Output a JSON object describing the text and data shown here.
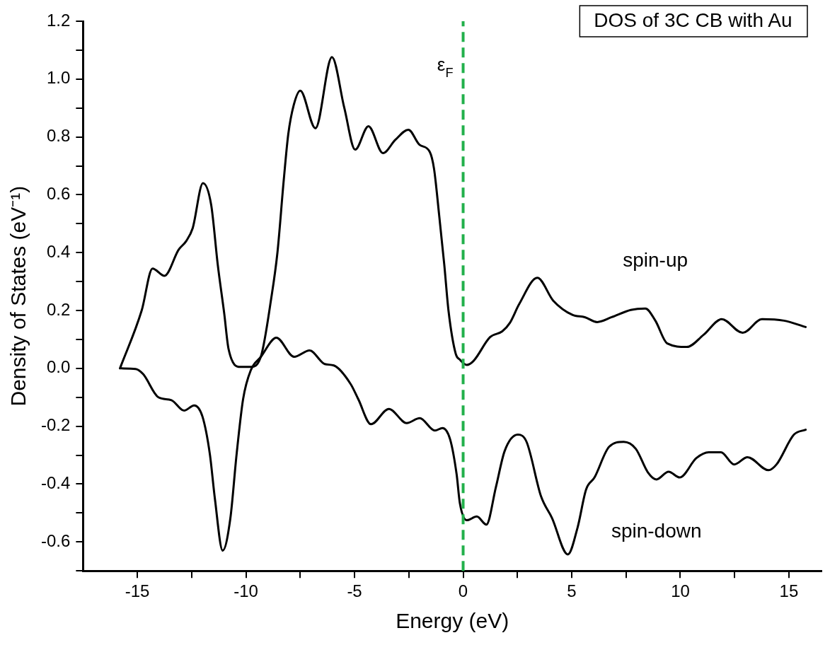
{
  "chart_data": {
    "type": "line",
    "xlabel": "Energy (eV)",
    "ylabel": "Density of States (eV⁻¹)",
    "xlim": [
      -17.5,
      16.5
    ],
    "ylim": [
      -0.7,
      1.2
    ],
    "xticks": [
      -15,
      {
        "value": -12.5,
        "label": null
      },
      -10,
      {
        "value": -7.5,
        "label": null
      },
      -5,
      {
        "value": -2.5,
        "label": null
      },
      0,
      {
        "value": 2.5,
        "label": null
      },
      5,
      {
        "value": 7.5,
        "label": null
      },
      10,
      {
        "value": 12.5,
        "label": null
      },
      15
    ],
    "yticks": [
      {
        "value": -0.7,
        "label": null
      },
      -0.6,
      {
        "value": -0.5,
        "label": null
      },
      -0.4,
      {
        "value": -0.3,
        "label": null
      },
      -0.2,
      {
        "value": -0.1,
        "label": null
      },
      {
        "value": 0,
        "label": "0.0"
      },
      {
        "value": 0.1,
        "label": null
      },
      0.2,
      {
        "value": 0.3,
        "label": null
      },
      0.4,
      {
        "value": 0.5,
        "label": null
      },
      0.6,
      {
        "value": 0.7,
        "label": null
      },
      0.8,
      {
        "value": 0.9,
        "label": null
      },
      {
        "value": 1,
        "label": "1.0"
      },
      {
        "value": 1.1,
        "label": null
      },
      1.2
    ],
    "grid": false,
    "legend": false,
    "marker": "none",
    "line_style": "solid",
    "series": [
      {
        "name": "spin-up",
        "color": "#000000",
        "x": [
          -15.8,
          -14.8,
          -14.3,
          -13.75,
          -13.1,
          -12.75,
          -12.45,
          -11.98,
          -11.6,
          -11.3,
          -11.0,
          -10.8,
          -10.25,
          -9.78,
          -9.3,
          -8.84,
          -8.55,
          -8.26,
          -8.05,
          -7.8,
          -7.5,
          -6.8,
          -6.04,
          -5.47,
          -4.97,
          -4.36,
          -3.69,
          -3.12,
          -2.52,
          -2.01,
          -1.54,
          -1.34,
          -1.1,
          -0.87,
          -0.67,
          -0.34,
          -0.15,
          0.17,
          0.47,
          1.24,
          1.8,
          2.15,
          2.58,
          3.42,
          4.15,
          5.03,
          5.6,
          6.17,
          6.84,
          7.72,
          8.39,
          8.85,
          9.4,
          10.3,
          11.07,
          11.9,
          12.87,
          13.76,
          14.77,
          15.77
        ],
        "values": [
          0,
          0.2,
          0.345,
          0.32,
          0.41,
          0.44,
          0.485,
          0.64,
          0.565,
          0.36,
          0.19,
          0.067,
          0.005,
          0.005,
          0.044,
          0.24,
          0.4,
          0.65,
          0.81,
          0.91,
          0.96,
          0.83,
          1.076,
          0.9,
          0.756,
          0.837,
          0.744,
          0.79,
          0.825,
          0.773,
          0.749,
          0.69,
          0.527,
          0.36,
          0.197,
          0.05,
          0.03,
          0.012,
          0.025,
          0.108,
          0.128,
          0.157,
          0.222,
          0.313,
          0.234,
          0.185,
          0.177,
          0.16,
          0.177,
          0.202,
          0.207,
          0.165,
          0.086,
          0.074,
          0.116,
          0.17,
          0.123,
          0.17,
          0.165,
          0.143
        ]
      },
      {
        "name": "spin-down",
        "color": "#000000",
        "x": [
          -15.74,
          -15.08,
          -14.73,
          -14.03,
          -13.43,
          -12.85,
          -12.38,
          -12.0,
          -11.66,
          -11.43,
          -11.07,
          -10.72,
          -10.43,
          -10.13,
          -9.78,
          -9.31,
          -8.6,
          -7.78,
          -7.07,
          -6.37,
          -5.95,
          -5.18,
          -4.83,
          -4.24,
          -3.42,
          -2.6,
          -2.0,
          -1.3,
          -0.95,
          -0.6,
          -0.3,
          -0.15,
          0.17,
          0.63,
          1.07,
          1.51,
          1.91,
          2.52,
          2.92,
          3.59,
          4.09,
          4.82,
          5.27,
          5.66,
          6.05,
          6.72,
          7.39,
          7.95,
          8.51,
          8.9,
          9.46,
          9.97,
          10.74,
          11.31,
          11.87,
          12.48,
          13.09,
          14.06,
          14.43,
          15.23,
          15.77
        ],
        "values": [
          0,
          -0.002,
          -0.02,
          -0.1,
          -0.11,
          -0.146,
          -0.128,
          -0.167,
          -0.297,
          -0.45,
          -0.63,
          -0.52,
          -0.297,
          -0.106,
          -0.007,
          0.04,
          0.106,
          0.04,
          0.062,
          0.015,
          0.01,
          -0.054,
          -0.106,
          -0.193,
          -0.14,
          -0.189,
          -0.172,
          -0.215,
          -0.206,
          -0.245,
          -0.366,
          -0.466,
          -0.525,
          -0.512,
          -0.54,
          -0.41,
          -0.286,
          -0.229,
          -0.254,
          -0.443,
          -0.517,
          -0.643,
          -0.55,
          -0.419,
          -0.377,
          -0.271,
          -0.254,
          -0.278,
          -0.36,
          -0.384,
          -0.357,
          -0.377,
          -0.31,
          -0.29,
          -0.29,
          -0.332,
          -0.307,
          -0.352,
          -0.332,
          -0.229,
          -0.212
        ]
      }
    ],
    "ref_lines": [
      {
        "axis": "x",
        "value": 0,
        "label": "ε$_{F}$",
        "color": "#22b04b",
        "line_style": "dashed"
      }
    ],
    "annotations": [
      "DOS of 3C CB with Au"
    ]
  }
}
